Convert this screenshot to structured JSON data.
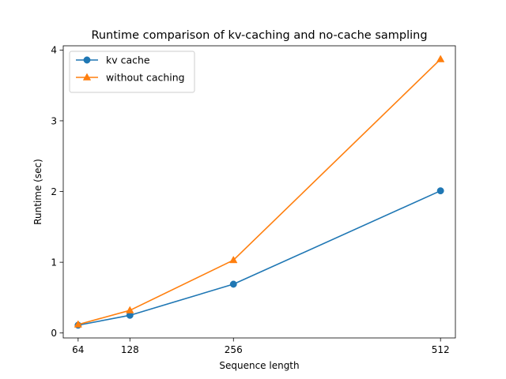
{
  "chart_data": {
    "type": "line",
    "title": "Runtime comparison of kv-caching and no-cache sampling",
    "xlabel": "Sequence length",
    "ylabel": "Runtime (sec)",
    "x": [
      64,
      128,
      256,
      512
    ],
    "xticks": [
      64,
      128,
      256,
      512
    ],
    "yticks": [
      0,
      1,
      2,
      3,
      4
    ],
    "xlim": [
      45.6,
      530.4
    ],
    "ylim": [
      -0.07,
      4.06
    ],
    "grid": false,
    "legend_position": "top-left",
    "series": [
      {
        "name": "kv cache",
        "values": [
          0.11,
          0.25,
          0.69,
          2.01
        ],
        "color": "#1f77b4",
        "marker": "circle"
      },
      {
        "name": "without caching",
        "values": [
          0.12,
          0.32,
          1.03,
          3.87
        ],
        "color": "#ff7f0e",
        "marker": "triangle"
      }
    ]
  }
}
